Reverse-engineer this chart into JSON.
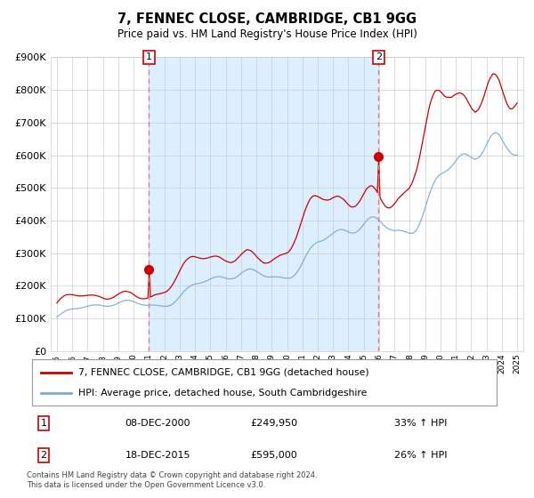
{
  "title": "7, FENNEC CLOSE, CAMBRIDGE, CB1 9GG",
  "subtitle": "Price paid vs. HM Land Registry's House Price Index (HPI)",
  "legend_line1": "7, FENNEC CLOSE, CAMBRIDGE, CB1 9GG (detached house)",
  "legend_line2": "HPI: Average price, detached house, South Cambridgeshire",
  "annotation1_date": "08-DEC-2000",
  "annotation1_price": "£249,950",
  "annotation1_hpi": "33% ↑ HPI",
  "annotation2_date": "18-DEC-2015",
  "annotation2_price": "£595,000",
  "annotation2_hpi": "26% ↑ HPI",
  "footer1": "Contains HM Land Registry data © Crown copyright and database right 2024.",
  "footer2": "This data is licensed under the Open Government Licence v3.0.",
  "red_color": "#cc0000",
  "blue_color": "#7aaad0",
  "shade_color": "#ddeeff",
  "background_color": "#ffffff",
  "grid_color": "#cccccc",
  "ylim": [
    0,
    900000
  ],
  "yticks": [
    0,
    100000,
    200000,
    300000,
    400000,
    500000,
    600000,
    700000,
    800000,
    900000
  ],
  "sale1_x": 2001.0,
  "sale1_y": 249950,
  "sale2_x": 2015.96,
  "sale2_y": 595000,
  "vline1_x": 2001.0,
  "vline2_x": 2015.96,
  "xmin": 1994.6,
  "xmax": 2025.4
}
